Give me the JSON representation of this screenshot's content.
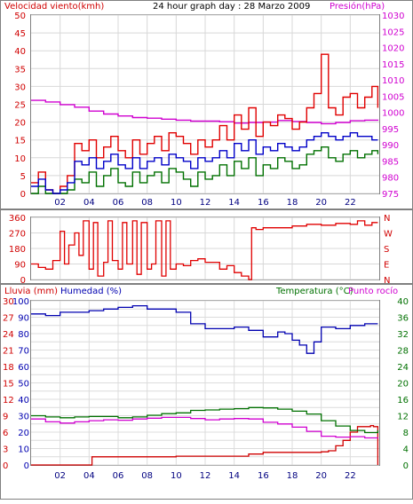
{
  "chart_data": [
    {
      "type": "line",
      "title": "24 hour graph day : 28 Marzo 2009",
      "left_axis_label": "Velocidad viento(kmh)",
      "right_axis_label": "Presión(hPa)",
      "ylim_left": [
        0,
        50
      ],
      "yticks_left": [
        "0",
        "5",
        "10",
        "15",
        "20",
        "25",
        "30",
        "35",
        "40",
        "45",
        "50"
      ],
      "ylim_right": [
        975,
        1030
      ],
      "yticks_right": [
        "975",
        "980",
        "985",
        "990",
        "995",
        "1000",
        "1005",
        "1010",
        "1015",
        "1020",
        "1025",
        "1030"
      ],
      "xlim_hours": [
        0,
        24
      ],
      "xtick_labels": [
        "02",
        "04",
        "06",
        "08",
        "10",
        "12",
        "14",
        "16",
        "18",
        "20",
        "22"
      ],
      "colors": {
        "gust": "#e00000",
        "avg": "#0000c8",
        "low": "#007000",
        "pressure": "#d000d0"
      },
      "series": [
        {
          "key": "pressure",
          "axis": "right",
          "x": [
            0,
            1,
            2,
            3,
            4,
            5,
            6,
            7,
            8,
            9,
            10,
            11,
            12,
            13,
            14,
            15,
            16,
            17,
            18,
            19,
            20,
            21,
            22,
            23,
            23.9
          ],
          "y": [
            1003.7,
            1003.2,
            1002.4,
            1001.6,
            1000.4,
            999.5,
            998.9,
            998.4,
            998.2,
            997.9,
            997.6,
            997.3,
            997.3,
            997.1,
            996.7,
            996.9,
            997.0,
            997.5,
            997.2,
            996.9,
            996.5,
            996.9,
            997.4,
            997.6,
            997.8
          ]
        },
        {
          "key": "gust",
          "axis": "left",
          "x": [
            0,
            0.5,
            1,
            1.5,
            2,
            2.5,
            3,
            3.5,
            4,
            4.5,
            5,
            5.5,
            6,
            6.5,
            7,
            7.5,
            8,
            8.5,
            9,
            9.5,
            10,
            10.5,
            11,
            11.5,
            12,
            12.5,
            13,
            13.5,
            14,
            14.5,
            15,
            15.5,
            16,
            16.5,
            17,
            17.5,
            18,
            18.5,
            19,
            19.5,
            20,
            20.5,
            21,
            21.5,
            22,
            22.5,
            23,
            23.5,
            23.9
          ],
          "y": [
            3,
            6,
            1,
            0,
            2,
            5,
            14,
            12,
            15,
            10,
            13,
            16,
            12,
            10,
            15,
            11,
            14,
            16,
            12,
            17,
            16,
            14,
            11,
            15,
            13,
            15,
            19,
            15,
            22,
            18,
            24,
            16,
            20,
            19,
            22,
            21,
            18,
            20,
            24,
            28,
            39,
            24,
            22,
            27,
            28,
            24,
            27,
            30,
            24
          ]
        },
        {
          "key": "avg",
          "axis": "left",
          "x": [
            0,
            0.5,
            1,
            1.5,
            2,
            2.5,
            3,
            3.5,
            4,
            4.5,
            5,
            5.5,
            6,
            6.5,
            7,
            7.5,
            8,
            8.5,
            9,
            9.5,
            10,
            10.5,
            11,
            11.5,
            12,
            12.5,
            13,
            13.5,
            14,
            14.5,
            15,
            15.5,
            16,
            16.5,
            17,
            17.5,
            18,
            18.5,
            19,
            19.5,
            20,
            20.5,
            21,
            21.5,
            22,
            22.5,
            23,
            23.5,
            23.9
          ],
          "y": [
            2,
            4,
            1,
            0,
            1,
            3,
            9,
            8,
            10,
            7,
            9,
            11,
            8,
            7,
            10,
            7,
            9,
            10,
            8,
            11,
            10,
            9,
            7,
            10,
            9,
            10,
            12,
            10,
            14,
            12,
            15,
            11,
            13,
            12,
            14,
            13,
            12,
            13,
            15,
            16,
            17,
            16,
            15,
            16,
            17,
            16,
            16,
            15,
            15
          ]
        },
        {
          "key": "low",
          "axis": "left",
          "x": [
            0,
            0.5,
            1,
            1.5,
            2,
            2.5,
            3,
            3.5,
            4,
            4.5,
            5,
            5.5,
            6,
            6.5,
            7,
            7.5,
            8,
            8.5,
            9,
            9.5,
            10,
            10.5,
            11,
            11.5,
            12,
            12.5,
            13,
            13.5,
            14,
            14.5,
            15,
            15.5,
            16,
            16.5,
            17,
            17.5,
            18,
            18.5,
            19,
            19.5,
            20,
            20.5,
            21,
            21.5,
            22,
            22.5,
            23,
            23.5,
            23.9
          ],
          "y": [
            0,
            2,
            0,
            0,
            0,
            1,
            4,
            3,
            6,
            2,
            5,
            7,
            3,
            2,
            6,
            3,
            5,
            6,
            3,
            7,
            6,
            4,
            2,
            6,
            4,
            5,
            8,
            5,
            9,
            7,
            10,
            5,
            8,
            7,
            10,
            9,
            7,
            8,
            11,
            12,
            13,
            10,
            9,
            11,
            12,
            10,
            11,
            12,
            11
          ]
        }
      ]
    },
    {
      "type": "line",
      "ylim": [
        0,
        360
      ],
      "yticks": [
        "0",
        "90",
        "180",
        "270",
        "360"
      ],
      "right_labels": [
        "N",
        "W",
        "S",
        "E",
        "N"
      ],
      "xlim_hours": [
        0,
        24
      ],
      "series": [
        {
          "key": "direction",
          "color": "#e00000",
          "x": [
            0,
            0.5,
            1,
            1.5,
            2,
            2.3,
            2.6,
            3,
            3.3,
            3.6,
            4,
            4.3,
            4.6,
            5,
            5.3,
            5.6,
            6,
            6.3,
            6.6,
            7,
            7.3,
            7.6,
            8,
            8.3,
            8.6,
            9,
            9.3,
            9.6,
            10,
            10.5,
            11,
            11.5,
            12,
            12.5,
            13,
            13.5,
            14,
            14.5,
            15,
            15.2,
            15.5,
            16,
            17,
            18,
            19,
            20,
            21,
            22,
            22.5,
            23,
            23.5,
            23.9
          ],
          "y": [
            90,
            70,
            60,
            110,
            280,
            90,
            200,
            270,
            140,
            340,
            60,
            330,
            20,
            100,
            340,
            110,
            60,
            330,
            90,
            340,
            30,
            330,
            60,
            90,
            340,
            20,
            340,
            60,
            90,
            80,
            110,
            120,
            100,
            100,
            60,
            80,
            40,
            20,
            0,
            300,
            290,
            300,
            300,
            310,
            320,
            315,
            325,
            320,
            340,
            315,
            330,
            330
          ]
        }
      ]
    },
    {
      "type": "line",
      "left_axis_label_1": "Lluvia (mm)",
      "left_axis_label_2": "Humedad (%)",
      "right_axis_label_1": "Temperatura (°C)",
      "right_axis_label_2": "Punto rocío",
      "ylim_rain": [
        0,
        30
      ],
      "yticks_rain": [
        "0",
        "3",
        "6",
        "9",
        "12",
        "15",
        "18",
        "21",
        "24",
        "27",
        "30"
      ],
      "ylim_humidity": [
        0,
        100
      ],
      "yticks_humidity": [
        "0",
        "10",
        "20",
        "30",
        "40",
        "50",
        "60",
        "70",
        "80",
        "90",
        "100"
      ],
      "ylim_temp": [
        0,
        40
      ],
      "yticks_temp": [
        "0",
        "2",
        "4",
        "6",
        "8",
        "10",
        "12",
        "14",
        "16",
        "18",
        "20",
        "22",
        "24",
        "26",
        "28",
        "30",
        "32",
        "34",
        "36",
        "38",
        "40"
      ],
      "ytick_labels_temp": [
        "0",
        "4",
        "8",
        "12",
        "16",
        "20",
        "24",
        "28",
        "32",
        "36",
        "40"
      ],
      "xlim_hours": [
        0,
        24
      ],
      "xtick_labels": [
        "02",
        "04",
        "06",
        "08",
        "10",
        "12",
        "14",
        "16",
        "18",
        "20",
        "22"
      ],
      "colors": {
        "rain": "#d00000",
        "humidity": "#0000b0",
        "temperature": "#007000",
        "dewpoint": "#d000d0"
      },
      "series": [
        {
          "key": "humidity",
          "axis": "humidity",
          "x": [
            0,
            1,
            2,
            3,
            4,
            5,
            6,
            7,
            8,
            9,
            10,
            11,
            12,
            13,
            14,
            15,
            16,
            17,
            17.5,
            18,
            18.5,
            19,
            19.5,
            20,
            21,
            22,
            23,
            23.9
          ],
          "y": [
            92,
            91,
            93,
            93,
            94,
            95,
            96,
            97,
            95,
            95,
            93,
            86,
            83,
            83,
            84,
            82,
            78,
            81,
            80,
            76,
            73,
            68,
            75,
            84,
            83,
            85,
            86,
            86
          ]
        },
        {
          "key": "temperature",
          "axis": "temp",
          "x": [
            0,
            1,
            2,
            3,
            4,
            5,
            6,
            7,
            8,
            9,
            10,
            11,
            12,
            13,
            14,
            15,
            16,
            17,
            18,
            19,
            20,
            21,
            22,
            23,
            23.9
          ],
          "y": [
            12.0,
            11.7,
            11.5,
            11.7,
            11.8,
            11.8,
            11.5,
            11.7,
            12.1,
            12.5,
            12.7,
            13.3,
            13.4,
            13.6,
            13.7,
            14.0,
            13.9,
            13.6,
            13.1,
            12.4,
            10.8,
            9.5,
            8.4,
            7.9,
            8.5
          ]
        },
        {
          "key": "dewpoint",
          "axis": "temp",
          "x": [
            0,
            1,
            2,
            3,
            4,
            5,
            6,
            7,
            8,
            9,
            10,
            11,
            12,
            13,
            14,
            15,
            16,
            17,
            18,
            19,
            20,
            21,
            22,
            23,
            23.9
          ],
          "y": [
            11.2,
            10.5,
            10.2,
            10.5,
            10.8,
            11.0,
            10.9,
            11.2,
            11.4,
            11.6,
            11.6,
            11.3,
            11.0,
            11.2,
            11.3,
            11.2,
            10.4,
            10.0,
            9.2,
            8.2,
            7.0,
            6.8,
            6.9,
            6.6,
            6.5
          ]
        },
        {
          "key": "rain",
          "axis": "rain",
          "x": [
            0,
            2,
            3,
            4,
            4.2,
            5,
            10,
            15,
            16,
            17,
            18,
            19,
            20,
            20.5,
            21,
            21.5,
            22,
            22.5,
            23,
            23.4,
            23.6,
            23.9
          ],
          "y": [
            0,
            0,
            0,
            0,
            1.5,
            1.5,
            1.6,
            2.0,
            2.3,
            2.3,
            2.3,
            2.3,
            2.4,
            2.6,
            3.5,
            4.5,
            6.0,
            7.0,
            7.0,
            7.2,
            7.0,
            0
          ]
        }
      ]
    }
  ]
}
